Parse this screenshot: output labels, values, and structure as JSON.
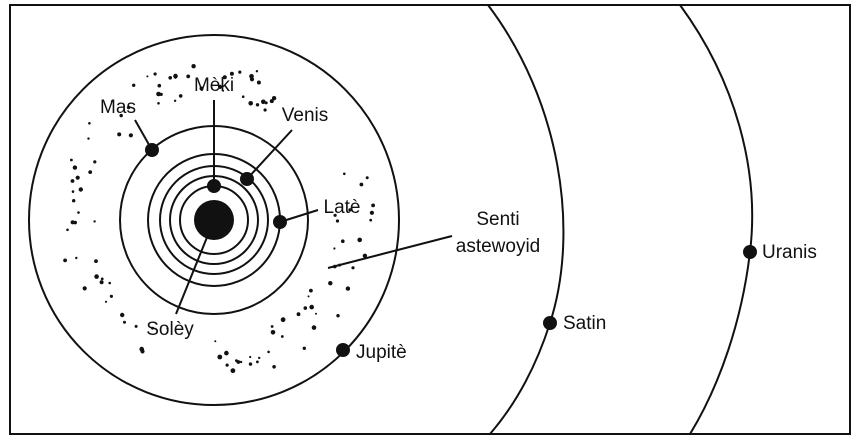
{
  "bodies": [
    {
      "label": "Solèy"
    },
    {
      "label": "Mèki"
    },
    {
      "label": "Venis"
    },
    {
      "label": "Latè"
    },
    {
      "label": "Mas"
    },
    {
      "label": "Jupitè"
    },
    {
      "label": "Satin"
    },
    {
      "label": "Uranis"
    }
  ],
  "asteroid_belt": {
    "label_lines": [
      "Senti",
      "astewoyid"
    ]
  }
}
